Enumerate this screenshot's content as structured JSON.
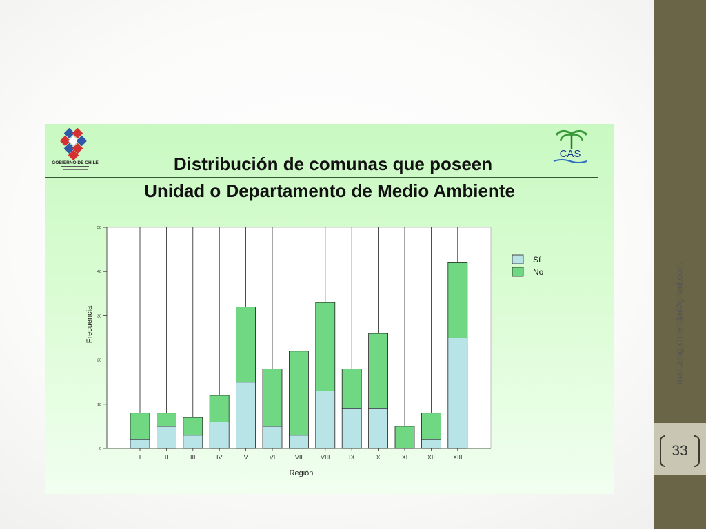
{
  "slide": {
    "title_line1": "Distribución de comunas que poseen",
    "title_line2": "Unidad o Departamento de Medio Ambiente",
    "footer_email": "mail:amg.chileltda@gmail.com",
    "page_number": "33",
    "logo_left_text": "GOBIERNO DE CHILE",
    "logo_right_text": "CAS"
  },
  "colors": {
    "si": "#b8e4e8",
    "no": "#70d883",
    "sidebar": "#6b6547",
    "sidebar_box": "#c9c7b3"
  },
  "chart_data": {
    "type": "bar",
    "stacked": true,
    "xlabel": "Región",
    "ylabel": "Frecuencia",
    "ylim": [
      0,
      50
    ],
    "yticks": [
      0,
      10,
      20,
      30,
      40,
      50
    ],
    "categories": [
      "I",
      "II",
      "III",
      "IV",
      "V",
      "VI",
      "VII",
      "VIII",
      "IX",
      "X",
      "XI",
      "XII",
      "XIII"
    ],
    "series": [
      {
        "name": "Sí",
        "values": [
          2,
          5,
          3,
          6,
          15,
          5,
          3,
          13,
          9,
          9,
          0,
          2,
          25
        ]
      },
      {
        "name": "No",
        "values": [
          6,
          3,
          4,
          6,
          17,
          13,
          19,
          20,
          9,
          17,
          5,
          6,
          17
        ]
      }
    ],
    "legend": "right"
  }
}
